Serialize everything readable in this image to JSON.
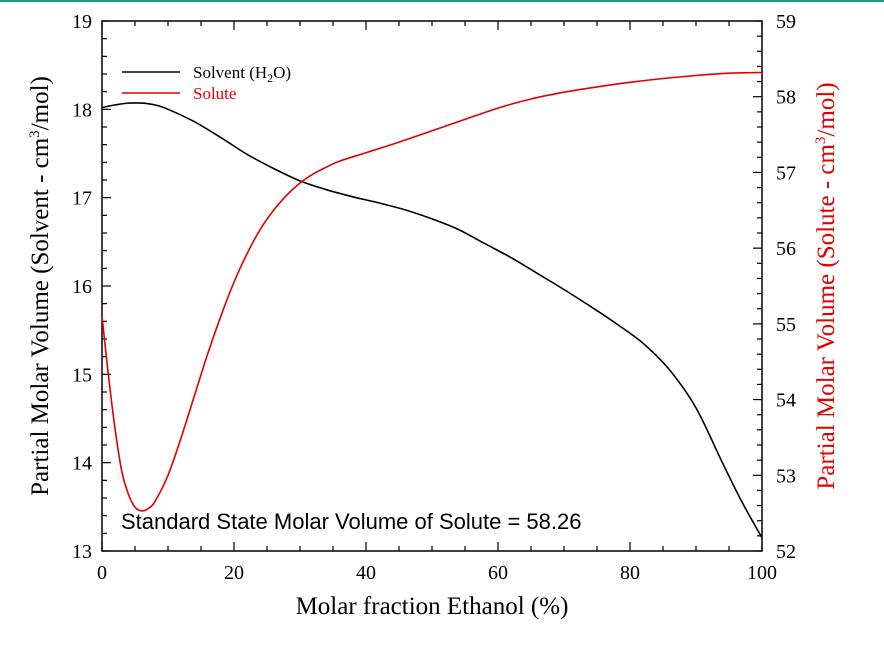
{
  "chart_data": {
    "type": "line",
    "xlabel": "Molar fraction Ethanol (%)",
    "ylabel_left": "Partial Molar Volume (Solvent - cm3/mol)",
    "ylabel_left_parts": {
      "before": "Partial Molar Volume (Solvent - cm",
      "sup": "3",
      "after": "/mol)"
    },
    "ylabel_right": "Partial Molar Volume (Solute - cm3/mol)",
    "ylabel_right_parts": {
      "before": "Partial Molar Volume (Solute - cm",
      "sup": "3",
      "after": "/mol)"
    },
    "xlim": [
      0,
      100
    ],
    "ylim_left": [
      13,
      19
    ],
    "ylim_right": [
      52,
      59
    ],
    "x_ticks": [
      0,
      20,
      40,
      60,
      80,
      100
    ],
    "y_left_ticks": [
      13,
      14,
      15,
      16,
      17,
      18,
      19
    ],
    "y_right_ticks": [
      52,
      53,
      54,
      55,
      56,
      57,
      58,
      59
    ],
    "grid": false,
    "legend_position": "top-left",
    "annotation": "Standard State Molar Volume of Solute = 58.26",
    "colors": {
      "solvent": "#000000",
      "solute": "#e00000"
    },
    "series": [
      {
        "name": "Solvent (H2O)",
        "legend_parts": {
          "before": "Solvent (H",
          "sub": "2",
          "after": "O)"
        },
        "axis": "left",
        "color": "#000000",
        "x": [
          0,
          2,
          4,
          6,
          8,
          10,
          14,
          18,
          22,
          26,
          30,
          34,
          38,
          42,
          46,
          50,
          54,
          58,
          62,
          66,
          70,
          74,
          78,
          82,
          86,
          90,
          94,
          97,
          100
        ],
        "y": [
          18.02,
          18.05,
          18.07,
          18.07,
          18.05,
          18.0,
          17.86,
          17.68,
          17.49,
          17.33,
          17.19,
          17.09,
          17.01,
          16.94,
          16.86,
          16.76,
          16.64,
          16.48,
          16.32,
          16.14,
          15.96,
          15.77,
          15.57,
          15.35,
          15.05,
          14.62,
          14.0,
          13.55,
          13.15
        ]
      },
      {
        "name": "Solute",
        "axis": "right",
        "color": "#e00000",
        "x": [
          0,
          1,
          2,
          3,
          4,
          5,
          6,
          7,
          8,
          10,
          12,
          14,
          16,
          18,
          20,
          22,
          24,
          26,
          28,
          30,
          32,
          34,
          36,
          40,
          45,
          50,
          55,
          60,
          65,
          70,
          75,
          80,
          85,
          90,
          95,
          100
        ],
        "y": [
          55.1,
          54.3,
          53.6,
          53.05,
          52.75,
          52.58,
          52.53,
          52.56,
          52.65,
          53.0,
          53.5,
          54.05,
          54.6,
          55.1,
          55.55,
          55.93,
          56.25,
          56.5,
          56.7,
          56.86,
          56.98,
          57.07,
          57.15,
          57.26,
          57.4,
          57.55,
          57.7,
          57.85,
          57.97,
          58.06,
          58.13,
          58.19,
          58.24,
          58.28,
          58.31,
          58.32
        ]
      }
    ]
  }
}
